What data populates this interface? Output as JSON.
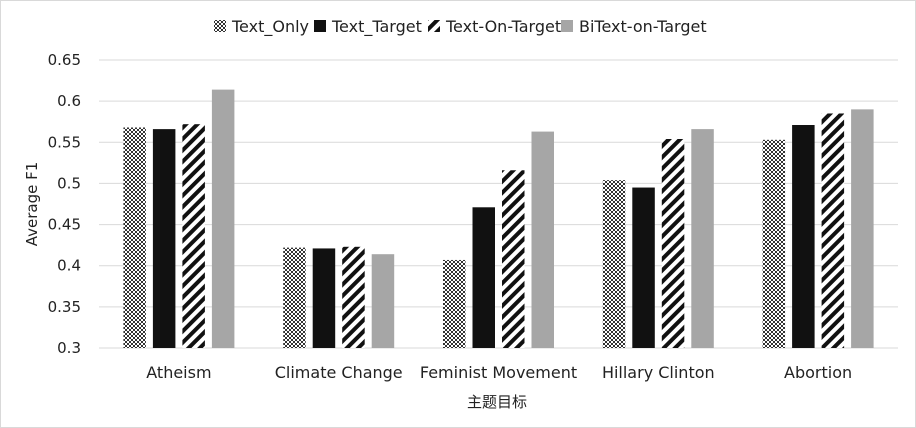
{
  "chart_data": {
    "type": "bar",
    "title": "",
    "xlabel": "主题目标",
    "ylabel": "Average F1",
    "ylim": [
      0.3,
      0.65
    ],
    "yticks": [
      0.3,
      0.35,
      0.4,
      0.45,
      0.5,
      0.55,
      0.6,
      0.65
    ],
    "ytick_labels": [
      "0.3",
      "0.35",
      "0.4",
      "0.45",
      "0.5",
      "0.55",
      "0.6",
      "0.65"
    ],
    "grid": true,
    "legend_position": "top",
    "categories": [
      "Atheism",
      "Climate Change",
      "Feminist Movement",
      "Hillary Clinton",
      "Abortion"
    ],
    "series": [
      {
        "name": "Text_Only",
        "pattern": "crosshatch",
        "color": "#333333",
        "values": [
          0.568,
          0.422,
          0.407,
          0.504,
          0.553
        ]
      },
      {
        "name": "Text_Target",
        "pattern": "solid",
        "color": "#111111",
        "values": [
          0.566,
          0.421,
          0.471,
          0.495,
          0.571
        ]
      },
      {
        "name": "Text-On-Target",
        "pattern": "diagonal-stripes",
        "color": "#111111",
        "values": [
          0.572,
          0.423,
          0.516,
          0.554,
          0.585
        ]
      },
      {
        "name": "BiText-on-Target",
        "pattern": "solid",
        "color": "#a6a6a6",
        "values": [
          0.614,
          0.414,
          0.563,
          0.566,
          0.59
        ]
      }
    ]
  }
}
